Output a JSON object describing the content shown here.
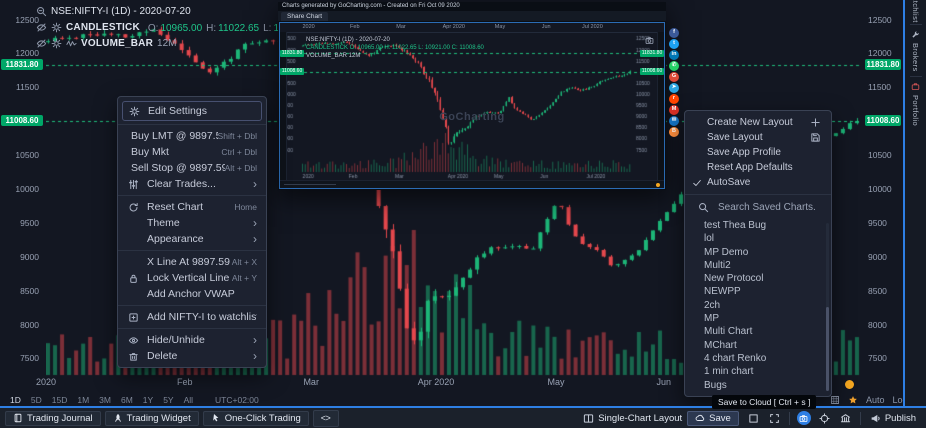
{
  "chart_data": {
    "type": "candlestick",
    "symbol": "NSE:NIFTY-I (1D) - 2020-07-20",
    "study_candlestick": "CANDLESTICK",
    "ohlc_legend": [
      {
        "k": "O:",
        "v": "10965.00"
      },
      {
        "k": "H:",
        "v": "11022.65"
      },
      {
        "k": "L:",
        "v": "10921.00"
      },
      {
        "k": "C:",
        "v": "11008.60"
      }
    ],
    "study_volume": "VOLUME_BAR",
    "volume_value": "12M",
    "y_range": [
      7300,
      12700
    ],
    "y_ticks": [
      12500,
      12000,
      11500,
      10500,
      10000,
      9500,
      9000,
      8500,
      8000,
      7500
    ],
    "levels": [
      {
        "price": 11831.8,
        "label": "11831.80"
      },
      {
        "price": 11008.6,
        "label": "11008.60"
      }
    ],
    "x_labels": [
      {
        "t": 0.0,
        "label": "2020"
      },
      {
        "t": 0.17,
        "label": "Feb"
      },
      {
        "t": 0.325,
        "label": "Mar"
      },
      {
        "t": 0.478,
        "label": "Apr 2020"
      },
      {
        "t": 0.625,
        "label": "May"
      },
      {
        "t": 0.757,
        "label": "Jun"
      }
    ],
    "candles": 116,
    "crash_center": 0.43,
    "trend_waypoints": [
      [
        0,
        12180
      ],
      [
        0.05,
        12290
      ],
      [
        0.1,
        12240
      ],
      [
        0.13,
        12360
      ],
      [
        0.17,
        12020
      ],
      [
        0.2,
        11700
      ],
      [
        0.24,
        12090
      ],
      [
        0.28,
        12200
      ],
      [
        0.32,
        11880
      ],
      [
        0.36,
        11220
      ],
      [
        0.4,
        10250
      ],
      [
        0.43,
        8850
      ],
      [
        0.45,
        7610
      ],
      [
        0.47,
        8280
      ],
      [
        0.5,
        8520
      ],
      [
        0.53,
        8980
      ],
      [
        0.56,
        9180
      ],
      [
        0.6,
        9120
      ],
      [
        0.63,
        9850
      ],
      [
        0.65,
        9300
      ],
      [
        0.68,
        9080
      ],
      [
        0.7,
        8850
      ],
      [
        0.73,
        9120
      ],
      [
        0.76,
        9560
      ],
      [
        0.79,
        10080
      ],
      [
        0.82,
        10310
      ],
      [
        0.85,
        10160
      ],
      [
        0.88,
        10290
      ],
      [
        0.91,
        10580
      ],
      [
        0.94,
        10740
      ],
      [
        0.97,
        10820
      ],
      [
        1,
        11008.6
      ]
    ]
  },
  "timeframe_bar": {
    "items": [
      "1D",
      "5D",
      "15D",
      "1M",
      "3M",
      "6M",
      "1Y",
      "5Y",
      "All"
    ],
    "active": "1D",
    "timezone": "UTC+02:00"
  },
  "axis_controls": {
    "auto": "Auto",
    "log": "Log"
  },
  "context_menu": {
    "items": [
      {
        "icon": "gear-icon",
        "label": "Edit Settings",
        "boxed": true
      },
      {
        "divider": true
      },
      {
        "label": "Buy LMT @ 9897.59",
        "shortcut": "Shift + Dbl",
        "noicon": true
      },
      {
        "label": "Buy Mkt",
        "shortcut": "Ctrl + Dbl",
        "noicon": true
      },
      {
        "label": "Sell Stop @ 9897.59",
        "shortcut": "Alt + Dbl",
        "noicon": true
      },
      {
        "icon": "sliders-icon",
        "label": "Clear Trades...",
        "arrow": true
      },
      {
        "divider": true
      },
      {
        "icon": "reset-icon",
        "label": "Reset Chart",
        "shortcut": "Home"
      },
      {
        "label": "Theme",
        "arrow": true
      },
      {
        "label": "Appearance",
        "arrow": true
      },
      {
        "divider": true
      },
      {
        "label": "X Line At 9897.59",
        "shortcut": "Alt + X"
      },
      {
        "icon": "lock-icon",
        "label": "Lock Vertical Line",
        "shortcut": "Alt + Y"
      },
      {
        "label": "Add Anchor VWAP"
      },
      {
        "divider": true
      },
      {
        "icon": "watchlist-add-icon",
        "label": "Add NIFTY-I to watchlist"
      },
      {
        "divider": true
      },
      {
        "icon": "eye-icon",
        "label": "Hide/Unhide",
        "arrow": true
      },
      {
        "icon": "trash-icon",
        "label": "Delete",
        "arrow": true
      }
    ]
  },
  "layout_menu": {
    "items": [
      {
        "label": "Create New Layout",
        "righticon": "plus-icon"
      },
      {
        "label": "Save Layout",
        "righticon": "floppy-icon"
      },
      {
        "label": "Save App Profile"
      },
      {
        "label": "Reset App Defaults"
      },
      {
        "label": "AutoSave",
        "lefticon": "check-icon"
      }
    ]
  },
  "saved_charts": {
    "search_placeholder": "Search Saved Charts.",
    "items": [
      "test Thea Bug",
      "lol",
      "MP Demo",
      "Multi2",
      "New Protocol",
      "NEWPP",
      "2ch",
      "MP",
      "Multi Chart",
      "MChart",
      "4 chart Renko",
      "1 min chart",
      "Bugs"
    ]
  },
  "inset": {
    "title": "Charts generated by GoCharting.com - Created on Fri Oct 09 2020",
    "tab": "Share Chart",
    "watermark": "GoCharting",
    "legend_symbol": "NSE:NIFTY-I (1D) - 2020-07-20",
    "legend_study": "CANDLESTICK O: 10965.00 H: 11022.65 L: 10921.00 C: 11008.60",
    "legend_volume": "VOLUME_BAR 12M",
    "months": [
      {
        "t": 0.02,
        "label": "2020"
      },
      {
        "t": 0.16,
        "label": "Feb"
      },
      {
        "t": 0.3,
        "label": "Mar"
      },
      {
        "t": 0.46,
        "label": "Apr 2020"
      },
      {
        "t": 0.6,
        "label": "May"
      },
      {
        "t": 0.74,
        "label": "Jun"
      },
      {
        "t": 0.88,
        "label": "Jul 2020"
      }
    ],
    "social": [
      {
        "name": "facebook",
        "color": "#3b5998",
        "glyph": "f"
      },
      {
        "name": "twitter",
        "color": "#1da1f2",
        "glyph": "t"
      },
      {
        "name": "linkedin",
        "color": "#0077b5",
        "glyph": "in"
      },
      {
        "name": "whatsapp",
        "color": "#25d366",
        "glyph": "✆"
      },
      {
        "name": "googleplus",
        "color": "#dd4b39",
        "glyph": "G"
      },
      {
        "name": "telegram",
        "color": "#2ca5e0",
        "glyph": "➤"
      },
      {
        "name": "reddit",
        "color": "#ff4500",
        "glyph": "r"
      },
      {
        "name": "gmail",
        "color": "#d93025",
        "glyph": "M"
      },
      {
        "name": "email",
        "color": "#1574c4",
        "glyph": "✉"
      },
      {
        "name": "blogger",
        "color": "#fc8d3d",
        "glyph": "B"
      }
    ]
  },
  "sidebar": {
    "tabs": [
      {
        "label": "Watchlist",
        "icon": "list-icon"
      },
      {
        "label": "Brokers",
        "icon": "wrench-icon"
      },
      {
        "label": "Portfolio",
        "icon": "portfolio-icon"
      }
    ]
  },
  "bottom_bar": {
    "left": [
      {
        "name": "trading-journal-button",
        "icon": "journal-icon",
        "label": "Trading Journal"
      },
      {
        "name": "trading-widget-button",
        "icon": "rocket-icon",
        "label": "Trading Widget"
      },
      {
        "name": "one-click-trading-button",
        "icon": "pointer-icon",
        "label": "One-Click Trading"
      },
      {
        "name": "code-button",
        "icon": "code-icon",
        "label": ""
      }
    ],
    "right": [
      {
        "name": "single-chart-layout-button",
        "icon": "layout-icon",
        "label": "Single-Chart Layout"
      },
      {
        "name": "save-button",
        "icon": "cloud-icon",
        "label": "Save",
        "active": true
      },
      {
        "name": "square-tool-button",
        "icon": "square-icon",
        "label": ""
      },
      {
        "name": "fullscreen-button",
        "icon": "expand-icon",
        "label": ""
      },
      {
        "sep": true
      },
      {
        "name": "camera-button",
        "icon": "camera-icon",
        "label": "",
        "circle": true
      },
      {
        "name": "crosshair-button",
        "icon": "crosshair-icon",
        "label": ""
      },
      {
        "name": "bank-button",
        "icon": "bank-icon",
        "label": ""
      },
      {
        "sep": true
      },
      {
        "name": "publish-button",
        "icon": "megaphone-icon",
        "label": "Publish"
      }
    ],
    "tooltip": "Save to Cloud [ Ctrl + s ]"
  },
  "colors": {
    "up": "#1db678",
    "down": "#e5484d",
    "up_vol": "rgba(29,182,120,0.5)",
    "down_vol": "rgba(229,72,77,0.5)",
    "level_green": "#1fbf7c",
    "accent_blue": "#2e7fe4",
    "badge_green": "#00a768",
    "star_orange": "#f0a12e",
    "dot_orange": "#f6a821"
  }
}
